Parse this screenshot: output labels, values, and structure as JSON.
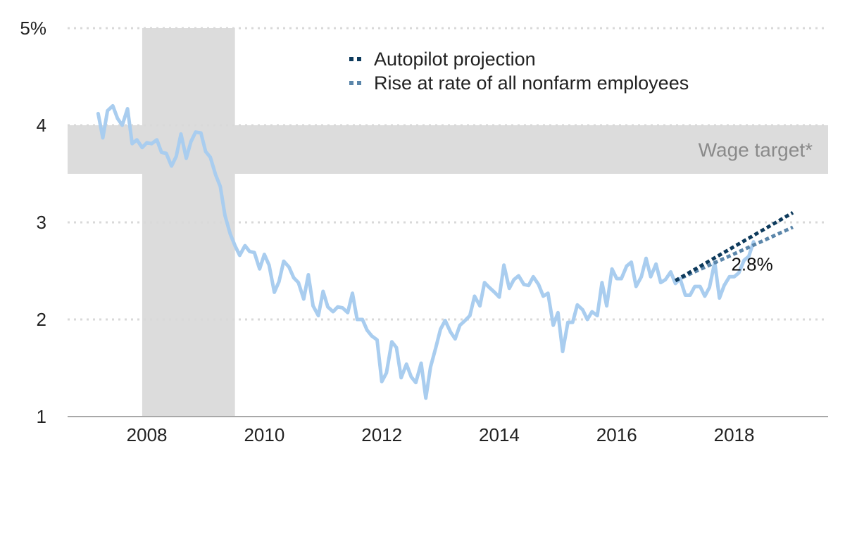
{
  "chart_data": {
    "type": "line",
    "title": "",
    "xlabel": "",
    "ylabel": "",
    "ylim": [
      1,
      5
    ],
    "xlim": [
      2006.65,
      2019.6
    ],
    "y_ticks": [
      {
        "value": 5,
        "label": "5%"
      },
      {
        "value": 4,
        "label": "4"
      },
      {
        "value": 3,
        "label": "3"
      },
      {
        "value": 2,
        "label": "2"
      },
      {
        "value": 1,
        "label": "1"
      }
    ],
    "x_ticks": [
      {
        "value": 2008,
        "label": "2008"
      },
      {
        "value": 2010,
        "label": "2010"
      },
      {
        "value": 2012,
        "label": "2012"
      },
      {
        "value": 2014,
        "label": "2014"
      },
      {
        "value": 2016,
        "label": "2016"
      },
      {
        "value": 2018,
        "label": "2018"
      }
    ],
    "grid": "horizontal dotted",
    "legend_position": "top-center",
    "recession_shading": {
      "start": 2007.92,
      "end": 2009.5
    },
    "wage_target_band": {
      "low": 3.5,
      "high": 4.0,
      "label": "Wage target*"
    },
    "end_label": "2.8%",
    "colors": {
      "series": "#a9cdef",
      "autopilot": "#0d3a5c",
      "nonfarm": "#5b86aa",
      "shade": "#dcdcdc",
      "grid": "#d9d9d9",
      "axis": "#a8a8a8",
      "band_text": "#8a8a8a"
    },
    "series": [
      {
        "x": [
          2007.17,
          2007.25,
          2007.33,
          2007.42,
          2007.5,
          2007.58,
          2007.67,
          2007.75,
          2007.83,
          2007.92,
          2008.0,
          2008.08,
          2008.17,
          2008.25,
          2008.33,
          2008.42,
          2008.5,
          2008.58,
          2008.67,
          2008.75,
          2008.83,
          2008.92,
          2009.0,
          2009.08,
          2009.17,
          2009.25,
          2009.33,
          2009.42,
          2009.5,
          2009.58,
          2009.67,
          2009.75,
          2009.83,
          2009.92,
          2010.0,
          2010.08,
          2010.17,
          2010.25,
          2010.33,
          2010.42,
          2010.5,
          2010.58,
          2010.67,
          2010.75,
          2010.83,
          2010.92,
          2011.0,
          2011.08,
          2011.17,
          2011.25,
          2011.33,
          2011.42,
          2011.5,
          2011.58,
          2011.67,
          2011.75,
          2011.83,
          2011.92,
          2012.0,
          2012.08,
          2012.17,
          2012.25,
          2012.33,
          2012.42,
          2012.5,
          2012.58,
          2012.67,
          2012.75,
          2012.83,
          2012.92,
          2013.0,
          2013.08,
          2013.17,
          2013.25,
          2013.33,
          2013.42,
          2013.5,
          2013.58,
          2013.67,
          2013.75,
          2013.83,
          2013.92,
          2014.0,
          2014.08,
          2014.17,
          2014.25,
          2014.33,
          2014.42,
          2014.5,
          2014.58,
          2014.67,
          2014.75,
          2014.83,
          2014.92,
          2015.0,
          2015.08,
          2015.17,
          2015.25,
          2015.33,
          2015.42,
          2015.5,
          2015.58,
          2015.67,
          2015.75,
          2015.83,
          2015.92,
          2016.0,
          2016.08,
          2016.17,
          2016.25,
          2016.33,
          2016.42,
          2016.5,
          2016.58,
          2016.67,
          2016.75,
          2016.83,
          2016.92,
          2017.0,
          2017.08,
          2017.17,
          2017.25,
          2017.33,
          2017.42,
          2017.5,
          2017.58,
          2017.67,
          2017.75,
          2017.83,
          2017.92,
          2018.0,
          2018.08,
          2018.17,
          2018.25,
          2018.33
        ],
        "values": [
          4.12,
          3.87,
          4.15,
          4.2,
          4.07,
          4.0,
          4.17,
          3.81,
          3.85,
          3.77,
          3.82,
          3.81,
          3.85,
          3.72,
          3.71,
          3.58,
          3.68,
          3.91,
          3.66,
          3.83,
          3.93,
          3.92,
          3.73,
          3.67,
          3.49,
          3.37,
          3.07,
          2.88,
          2.76,
          2.66,
          2.76,
          2.7,
          2.69,
          2.52,
          2.67,
          2.56,
          2.28,
          2.39,
          2.6,
          2.54,
          2.43,
          2.38,
          2.21,
          2.46,
          2.14,
          2.04,
          2.29,
          2.13,
          2.08,
          2.13,
          2.12,
          2.07,
          2.27,
          2.0,
          2.0,
          1.89,
          1.83,
          1.79,
          1.36,
          1.45,
          1.77,
          1.71,
          1.4,
          1.54,
          1.41,
          1.35,
          1.55,
          1.19,
          1.51,
          1.71,
          1.9,
          1.99,
          1.87,
          1.8,
          1.94,
          1.99,
          2.04,
          2.24,
          2.14,
          2.38,
          2.33,
          2.28,
          2.23,
          2.56,
          2.32,
          2.41,
          2.45,
          2.36,
          2.35,
          2.44,
          2.36,
          2.24,
          2.27,
          1.94,
          2.07,
          1.67,
          1.97,
          1.97,
          2.15,
          2.1,
          2.0,
          2.08,
          2.04,
          2.38,
          2.14,
          2.52,
          2.42,
          2.42,
          2.55,
          2.59,
          2.34,
          2.44,
          2.63,
          2.44,
          2.57,
          2.38,
          2.41,
          2.49,
          2.37,
          2.42,
          2.25,
          2.25,
          2.34,
          2.34,
          2.24,
          2.33,
          2.59,
          2.22,
          2.35,
          2.44,
          2.44,
          2.48,
          2.61,
          2.65,
          2.8
        ]
      },
      {
        "name": "Autopilot projection",
        "x": [
          2017.0,
          2019.0
        ],
        "values": [
          2.4,
          3.1
        ]
      },
      {
        "name": "Rise at rate of all nonfarm employees",
        "x": [
          2017.0,
          2019.0
        ],
        "values": [
          2.4,
          2.95
        ]
      }
    ]
  }
}
